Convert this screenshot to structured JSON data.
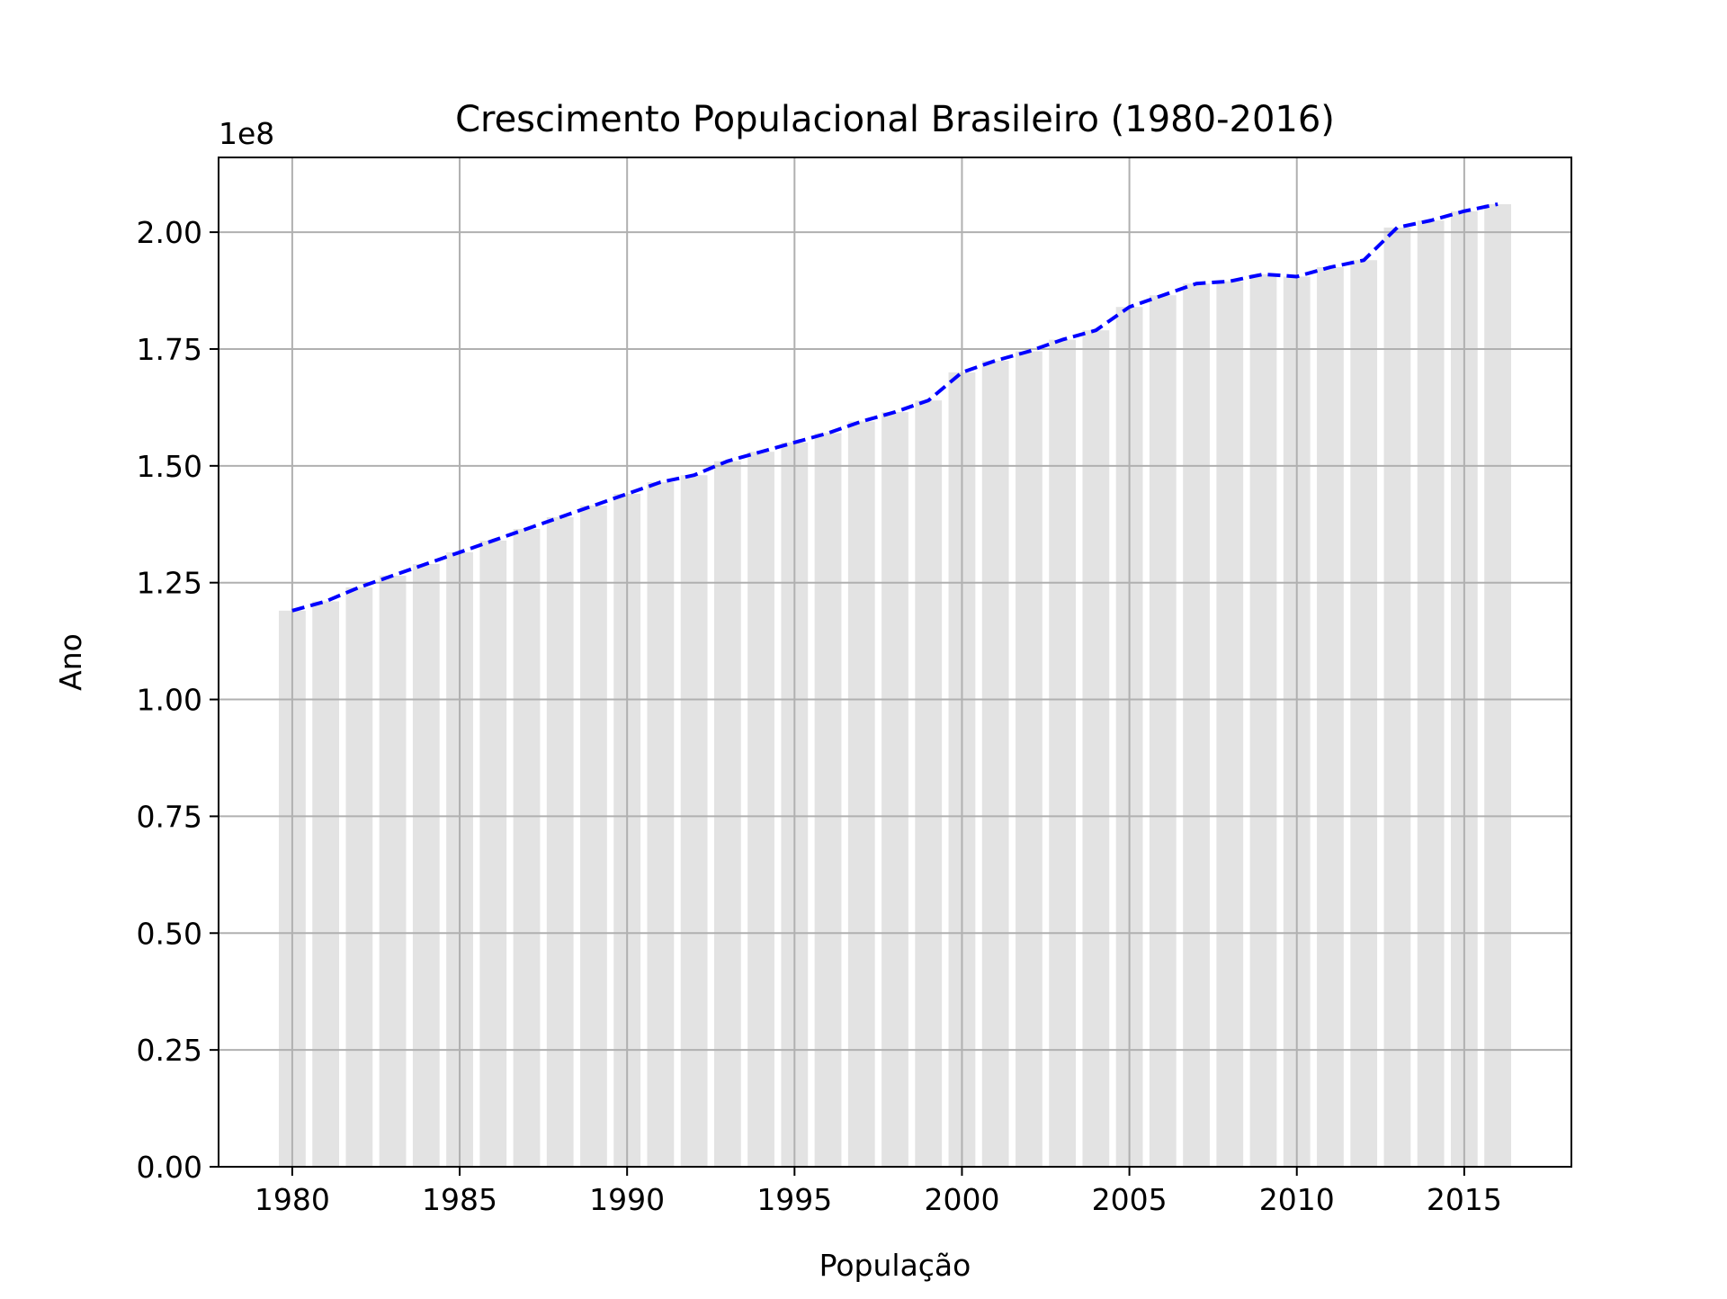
{
  "chart_data": {
    "type": "bar",
    "title": "Crescimento Populacional Brasileiro (1980-2016)",
    "xlabel": "População",
    "ylabel": "Ano",
    "y_offset_label": "1e8",
    "xlim": [
      1977.8,
      2018.2
    ],
    "ylim": [
      0,
      2.16
    ],
    "x_ticks": [
      1980,
      1985,
      1990,
      1995,
      2000,
      2005,
      2010,
      2015
    ],
    "y_ticks": [
      0.0,
      0.25,
      0.5,
      0.75,
      1.0,
      1.25,
      1.5,
      1.75,
      2.0
    ],
    "y_tick_labels": [
      "0.00",
      "0.25",
      "0.50",
      "0.75",
      "1.00",
      "1.25",
      "1.50",
      "1.75",
      "2.00"
    ],
    "grid": true,
    "x": [
      1980,
      1981,
      1982,
      1983,
      1984,
      1985,
      1986,
      1987,
      1988,
      1989,
      1990,
      1991,
      1992,
      1993,
      1994,
      1995,
      1996,
      1997,
      1998,
      1999,
      2000,
      2001,
      2002,
      2003,
      2004,
      2005,
      2006,
      2007,
      2008,
      2009,
      2010,
      2011,
      2012,
      2013,
      2014,
      2015,
      2016
    ],
    "values": [
      1.19,
      1.21,
      1.24,
      1.265,
      1.29,
      1.315,
      1.34,
      1.365,
      1.39,
      1.415,
      1.44,
      1.465,
      1.48,
      1.51,
      1.53,
      1.55,
      1.57,
      1.595,
      1.615,
      1.64,
      1.7,
      1.725,
      1.745,
      1.77,
      1.79,
      1.84,
      1.865,
      1.89,
      1.895,
      1.91,
      1.905,
      1.925,
      1.94,
      2.01,
      2.025,
      2.045,
      2.06
    ],
    "series": [
      {
        "type": "bar",
        "color": "#e3e3e3",
        "bar_width": 0.8
      },
      {
        "type": "line",
        "style": "dashed",
        "color": "#0000ff"
      }
    ]
  }
}
